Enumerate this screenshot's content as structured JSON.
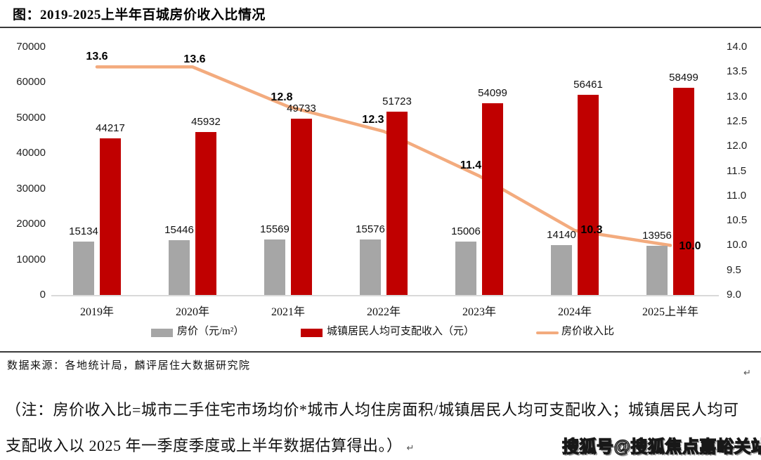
{
  "title": "图：2019-2025上半年百城房价收入比情况",
  "chart_data": {
    "type": "bar",
    "subtype": "grouped bars with secondary-axis line",
    "categories": [
      "2019年",
      "2020年",
      "2021年",
      "2022年",
      "2023年",
      "2024年",
      "2025上半年"
    ],
    "series": [
      {
        "name": "房价（元/m²）",
        "type": "bar",
        "axis": "left",
        "color": "#A6A6A6",
        "values": [
          15134,
          15446,
          15569,
          15576,
          15006,
          14140,
          13956
        ]
      },
      {
        "name": "城镇居民人均可支配收入（元）",
        "type": "bar",
        "axis": "left",
        "color": "#C00000",
        "values": [
          44217,
          45932,
          49733,
          51723,
          54099,
          56461,
          58499
        ]
      },
      {
        "name": "房价收入比",
        "type": "line",
        "axis": "right",
        "color": "#F3AB7E",
        "values": [
          13.6,
          13.6,
          12.8,
          12.3,
          11.4,
          10.3,
          10.0
        ]
      }
    ],
    "line_point_labels": [
      "13.6",
      "13.6",
      "12.8",
      "12.3",
      "11.4",
      "10.3",
      "10.0"
    ],
    "left_axis": {
      "min": 0,
      "max": 70000,
      "ticks": [
        "0",
        "10000",
        "20000",
        "30000",
        "40000",
        "50000",
        "60000",
        "70000"
      ]
    },
    "right_axis": {
      "min": 9.0,
      "max": 14.0,
      "ticks": [
        "9.0",
        "9.5",
        "10.0",
        "10.5",
        "11.0",
        "11.5",
        "12.0",
        "12.5",
        "13.0",
        "13.5",
        "14.0"
      ]
    },
    "grid": false,
    "legend_position": "bottom"
  },
  "legend": {
    "items": [
      {
        "label": "房价（元/m²）",
        "color": "#A6A6A6",
        "shape": "rect"
      },
      {
        "label": "城镇居民人均可支配收入（元）",
        "color": "#C00000",
        "shape": "rect"
      },
      {
        "label": "房价收入比",
        "color": "#F3AB7E",
        "shape": "line"
      }
    ]
  },
  "source": "数据来源：各地统计局，麟评居住大数据研究院",
  "note": {
    "line1": "（注：房价收入比=城市二手住宅市场均价*城市人均住房面积/城镇居民人均可支配收入；城镇居民人均可",
    "line2": "支配收入以 2025 年一季度季度或上半年数据估算得出。）",
    "mark": "↵"
  },
  "paragraph_mark": "↵",
  "watermark": "搜狐号@搜狐焦点嘉峪关站"
}
